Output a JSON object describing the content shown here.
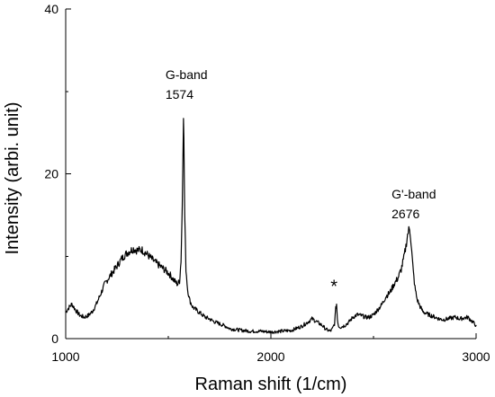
{
  "chart_data": {
    "type": "line",
    "title": "",
    "xlabel": "Raman shift (1/cm)",
    "ylabel": "Intensity (arbi. unit)",
    "xlim": [
      1000,
      3000
    ],
    "ylim": [
      0,
      40
    ],
    "x_ticks": [
      1000,
      2000,
      3000
    ],
    "x_tick_labels": [
      "1000",
      "2000",
      "3000"
    ],
    "x_minor_ticks": [
      1500,
      2500
    ],
    "y_ticks": [
      0,
      20,
      40
    ],
    "y_tick_labels": [
      "0",
      "20",
      "40"
    ],
    "y_minor_ticks": [
      10,
      30
    ],
    "grid": false,
    "legend": "none",
    "line_color": "#000000",
    "series": [
      {
        "x": [
          1000,
          1010,
          1030,
          1050,
          1070,
          1090,
          1110,
          1130,
          1150,
          1170,
          1190,
          1210,
          1230,
          1250,
          1270,
          1290,
          1310,
          1330,
          1350,
          1370,
          1390,
          1410,
          1430,
          1450,
          1470,
          1490,
          1510,
          1530,
          1545,
          1555,
          1562,
          1568,
          1572,
          1574,
          1576,
          1580,
          1586,
          1594,
          1605,
          1620,
          1640,
          1660,
          1680,
          1700,
          1720,
          1740,
          1760,
          1780,
          1800,
          1830,
          1860,
          1900,
          1950,
          2000,
          2050,
          2100,
          2150,
          2180,
          2200,
          2220,
          2250,
          2270,
          2290,
          2300,
          2310,
          2316,
          2320,
          2324,
          2330,
          2340,
          2360,
          2380,
          2400,
          2420,
          2440,
          2460,
          2480,
          2500,
          2520,
          2540,
          2560,
          2580,
          2600,
          2620,
          2635,
          2648,
          2658,
          2666,
          2672,
          2676,
          2680,
          2686,
          2694,
          2702,
          2712,
          2725,
          2740,
          2760,
          2780,
          2800,
          2820,
          2840,
          2860,
          2880,
          2900,
          2920,
          2940,
          2960,
          2980,
          3000
        ],
        "y": [
          3.2,
          3.6,
          4.2,
          3.4,
          2.8,
          2.6,
          2.8,
          3.3,
          4.2,
          5.4,
          6.6,
          7.4,
          8.1,
          8.8,
          9.6,
          10.2,
          10.6,
          10.9,
          10.7,
          10.8,
          10.4,
          9.9,
          9.4,
          9.0,
          8.6,
          8.2,
          7.7,
          7.0,
          6.6,
          7.0,
          9.5,
          16.0,
          23.5,
          27.2,
          24.0,
          15.0,
          8.5,
          6.0,
          4.6,
          3.8,
          3.4,
          3.0,
          2.6,
          2.4,
          2.1,
          1.9,
          1.7,
          1.5,
          1.2,
          1.1,
          1.0,
          0.9,
          0.9,
          0.8,
          0.9,
          1.0,
          1.5,
          2.0,
          2.4,
          2.1,
          1.6,
          1.1,
          0.9,
          1.2,
          1.8,
          3.6,
          4.2,
          2.4,
          1.5,
          1.4,
          1.6,
          2.0,
          2.6,
          2.9,
          2.8,
          2.6,
          2.6,
          2.9,
          3.5,
          4.1,
          5.1,
          5.6,
          6.6,
          7.4,
          8.4,
          9.8,
          11.2,
          12.6,
          13.2,
          13.4,
          12.6,
          10.6,
          8.1,
          6.2,
          4.8,
          4.0,
          3.3,
          3.0,
          2.8,
          2.6,
          2.4,
          2.3,
          2.4,
          2.5,
          2.6,
          2.4,
          2.5,
          2.6,
          2.1,
          1.6
        ]
      }
    ],
    "annotations": [
      {
        "lines": [
          "G-band",
          "1574"
        ],
        "x": 1574,
        "y": 31.5
      },
      {
        "lines": [
          "G'-band",
          "2676"
        ],
        "x": 2676,
        "y": 17.0
      },
      {
        "lines": [
          "*"
        ],
        "x": 2317,
        "y": 5.6
      }
    ]
  }
}
